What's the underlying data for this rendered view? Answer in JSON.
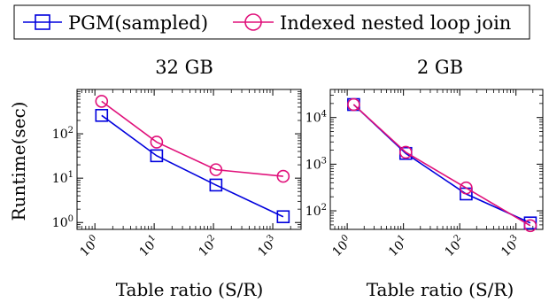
{
  "legend": {
    "placement": "top-center",
    "entries": [
      {
        "label": "PGM(sampled)",
        "color": "#0000dd",
        "marker": "square"
      },
      {
        "label": "Indexed nested loop join",
        "color": "#e0107a",
        "marker": "circle"
      }
    ]
  },
  "shared": {
    "ylabel": "Runtime(sec)",
    "xlabel": "Table ratio (S/R)"
  },
  "chart_data": [
    {
      "type": "line",
      "title": "32 GB",
      "xlabel": "Table ratio (S/R)",
      "ylabel": "Runtime(sec)",
      "xscale": "log",
      "yscale": "log",
      "xlim": [
        0.5,
        3000
      ],
      "ylim": [
        0.7,
        1000
      ],
      "xticks": [
        1,
        10,
        100,
        1000
      ],
      "xtick_labels": [
        "10^0",
        "10^1",
        "10^2",
        "10^3"
      ],
      "yticks": [
        1,
        10,
        100
      ],
      "ytick_labels": [
        "10^0",
        "10^1",
        "10^2"
      ],
      "x": [
        1.3,
        11,
        110,
        1500
      ],
      "series": [
        {
          "name": "PGM(sampled)",
          "values": [
            260,
            32,
            7,
            1.35
          ]
        },
        {
          "name": "Indexed nested loop join",
          "values": [
            540,
            65,
            15.5,
            11
          ]
        }
      ]
    },
    {
      "type": "line",
      "title": "2 GB",
      "xlabel": "Table ratio (S/R)",
      "ylabel": "",
      "xscale": "log",
      "yscale": "log",
      "xlim": [
        0.5,
        3000
      ],
      "ylim": [
        40,
        40000
      ],
      "xticks": [
        1,
        10,
        100,
        1000
      ],
      "xtick_labels": [
        "10^0",
        "10^1",
        "10^2",
        "10^3"
      ],
      "yticks": [
        100,
        1000,
        10000
      ],
      "ytick_labels": [
        "10^2",
        "10^3",
        "10^4"
      ],
      "x": [
        1.3,
        11,
        130,
        1800
      ],
      "series": [
        {
          "name": "PGM(sampled)",
          "values": [
            19000,
            1700,
            230,
            55
          ]
        },
        {
          "name": "Indexed nested loop join",
          "values": [
            19000,
            1800,
            310,
            48
          ]
        }
      ]
    }
  ]
}
